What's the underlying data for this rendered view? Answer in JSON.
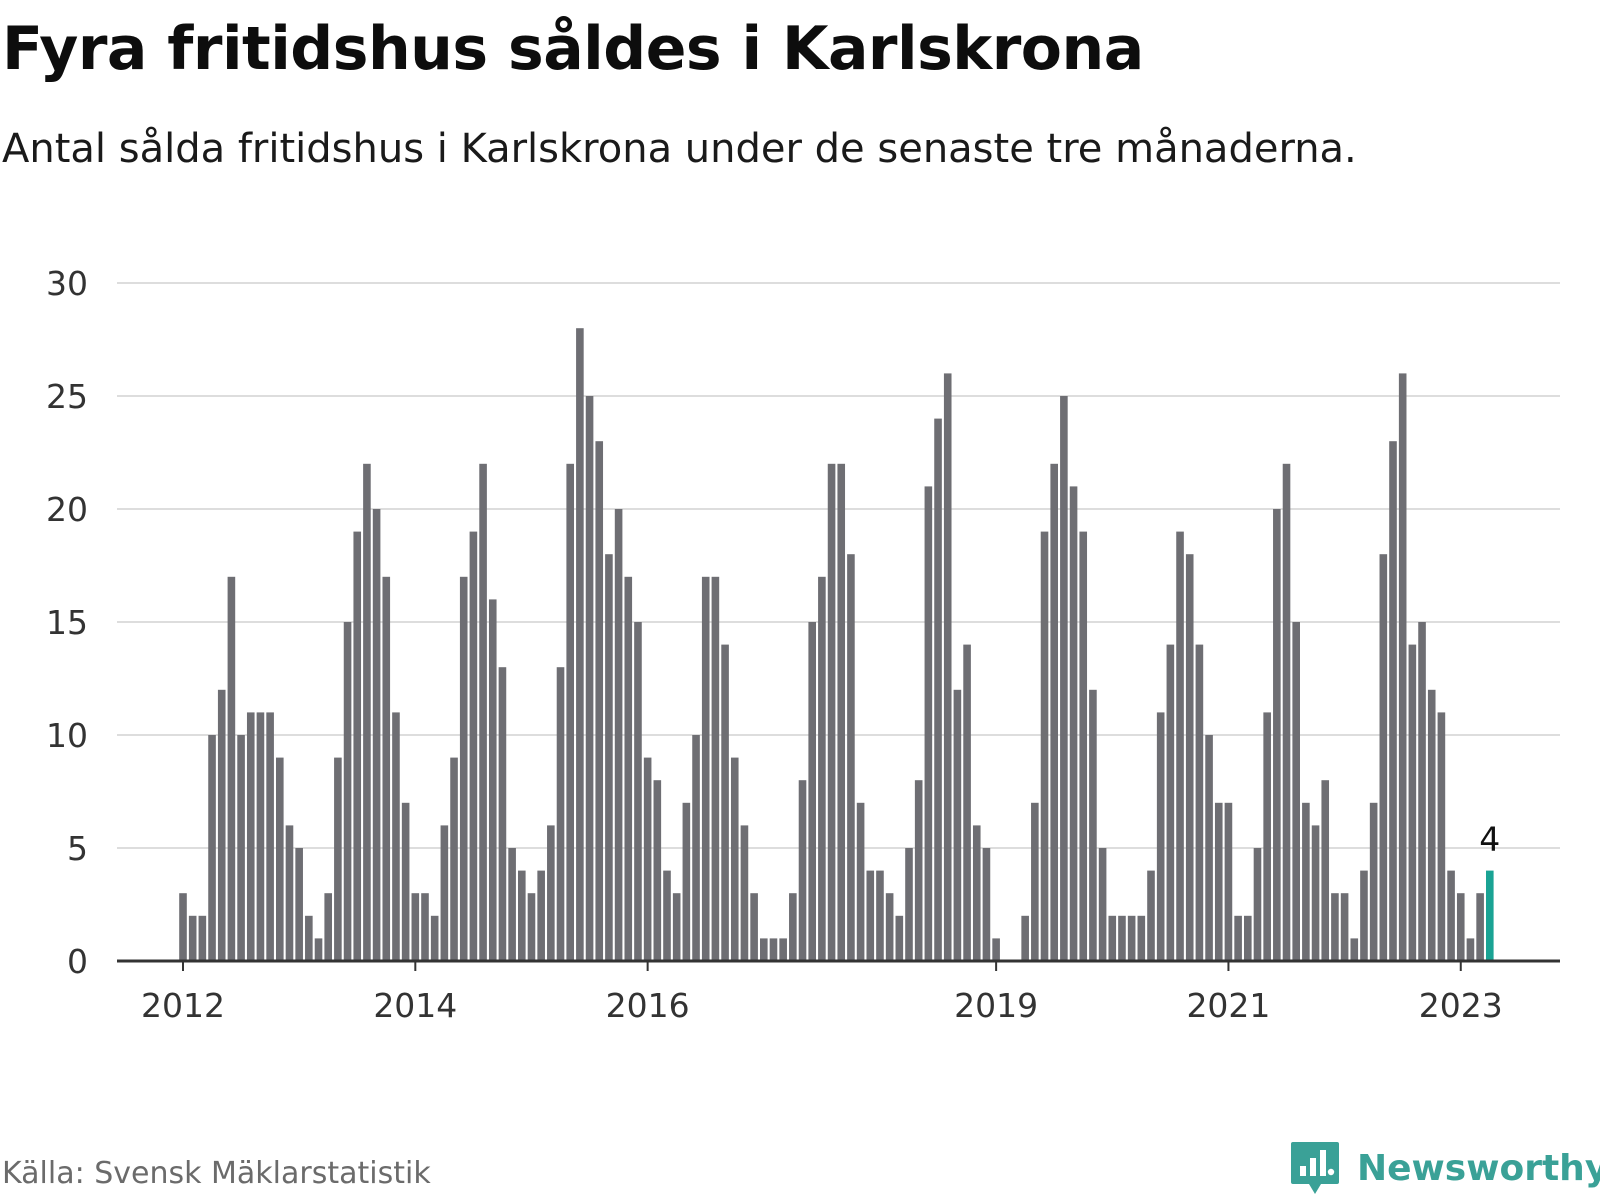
{
  "title": "Fyra fritidshus såldes i Karlskrona",
  "subtitle": "Antal sålda fritidshus i Karlskrona under de senaste tre månaderna.",
  "source": "Källa: Svensk Mäklarstatistik",
  "brand": {
    "name": "Newsworthy",
    "icon": "newsworthy-logo-icon"
  },
  "colors": {
    "bar": "#6e6e73",
    "highlight": "#1aa394",
    "grid": "#dddddd",
    "axis": "#333333"
  },
  "chart_data": {
    "type": "bar",
    "ylim": [
      0,
      30
    ],
    "yticks": [
      "0",
      "5",
      "10",
      "15",
      "20",
      "25",
      "30"
    ],
    "xtick_labels": [
      {
        "label": "2012",
        "index": 0
      },
      {
        "label": "2014",
        "index": 24
      },
      {
        "label": "2016",
        "index": 48
      },
      {
        "label": "2019",
        "index": 84
      },
      {
        "label": "2021",
        "index": 108
      },
      {
        "label": "2023",
        "index": 132
      }
    ],
    "highlight": {
      "index": 135,
      "value": 4,
      "label": "4"
    },
    "grid": true,
    "values": [
      3,
      2,
      2,
      10,
      12,
      17,
      10,
      11,
      11,
      11,
      9,
      6,
      5,
      2,
      1,
      3,
      9,
      15,
      19,
      22,
      20,
      17,
      11,
      7,
      3,
      3,
      2,
      6,
      9,
      17,
      19,
      22,
      16,
      13,
      5,
      4,
      3,
      4,
      6,
      13,
      22,
      28,
      25,
      23,
      18,
      20,
      17,
      15,
      9,
      8,
      4,
      3,
      7,
      10,
      17,
      17,
      14,
      9,
      6,
      3,
      1,
      1,
      1,
      3,
      8,
      15,
      17,
      22,
      22,
      18,
      7,
      4,
      4,
      3,
      2,
      5,
      8,
      21,
      24,
      26,
      12,
      14,
      6,
      5,
      1,
      0,
      0,
      2,
      7,
      19,
      22,
      25,
      21,
      19,
      12,
      5,
      2,
      2,
      2,
      2,
      4,
      11,
      14,
      19,
      18,
      14,
      10,
      7,
      7,
      2,
      2,
      5,
      11,
      20,
      22,
      15,
      7,
      6,
      8,
      3,
      3,
      1,
      4,
      7,
      18,
      23,
      26,
      14,
      15,
      12,
      11,
      4,
      3,
      1,
      3,
      4
    ]
  }
}
